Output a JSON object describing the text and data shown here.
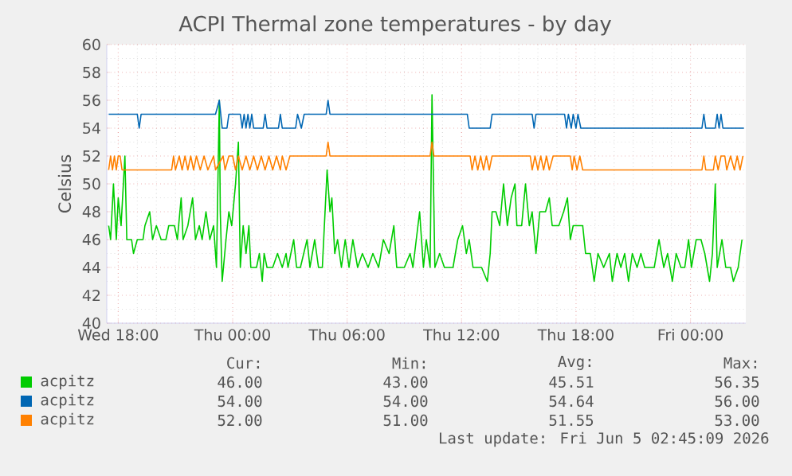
{
  "chart_data": {
    "type": "line",
    "title": "ACPI Thermal zone temperatures - by day",
    "ylabel": "Celsius",
    "xlim": [
      "2026-06-03T17:24",
      "2026-06-05T02:54"
    ],
    "xticks": [
      {
        "value": "2026-06-03T18:00",
        "label": "Wed 18:00"
      },
      {
        "value": "2026-06-04T00:00",
        "label": "Thu 00:00"
      },
      {
        "value": "2026-06-04T06:00",
        "label": "Thu 06:00"
      },
      {
        "value": "2026-06-04T12:00",
        "label": "Thu 12:00"
      },
      {
        "value": "2026-06-04T18:00",
        "label": "Thu 18:00"
      },
      {
        "value": "2026-06-05T00:00",
        "label": "Fri 00:00"
      }
    ],
    "ylim": [
      40,
      60
    ],
    "yticks": [
      40,
      42,
      44,
      46,
      48,
      50,
      52,
      54,
      56,
      58,
      60
    ],
    "grid": true,
    "legend": "bottom",
    "series": [
      {
        "name": "acpitz",
        "color": "#00cc00",
        "x": [
          "2026-06-03T17:30",
          "2026-06-03T17:36",
          "2026-06-03T17:45",
          "2026-06-03T17:54",
          "2026-06-03T18:00",
          "2026-06-03T18:09",
          "2026-06-03T18:21",
          "2026-06-03T18:27",
          "2026-06-03T18:42",
          "2026-06-03T18:48",
          "2026-06-03T19:00",
          "2026-06-03T19:18",
          "2026-06-03T19:24",
          "2026-06-03T19:39",
          "2026-06-03T19:48",
          "2026-06-03T20:00",
          "2026-06-03T20:15",
          "2026-06-03T20:30",
          "2026-06-03T20:39",
          "2026-06-03T20:57",
          "2026-06-03T21:06",
          "2026-06-03T21:18",
          "2026-06-03T21:24",
          "2026-06-03T21:39",
          "2026-06-03T21:54",
          "2026-06-03T22:03",
          "2026-06-03T22:15",
          "2026-06-03T22:24",
          "2026-06-03T22:36",
          "2026-06-03T22:48",
          "2026-06-03T23:00",
          "2026-06-03T23:09",
          "2026-06-03T23:18",
          "2026-06-03T23:21",
          "2026-06-03T23:27",
          "2026-06-03T23:39",
          "2026-06-03T23:48",
          "2026-06-03T23:57",
          "2026-06-04T00:09",
          "2026-06-04T00:18",
          "2026-06-04T00:24",
          "2026-06-04T00:33",
          "2026-06-04T00:42",
          "2026-06-04T00:51",
          "2026-06-04T00:57",
          "2026-06-04T01:15",
          "2026-06-04T01:24",
          "2026-06-04T01:33",
          "2026-06-04T01:39",
          "2026-06-04T01:48",
          "2026-06-04T02:06",
          "2026-06-04T02:21",
          "2026-06-04T02:36",
          "2026-06-04T02:48",
          "2026-06-04T02:54",
          "2026-06-04T03:03",
          "2026-06-04T03:12",
          "2026-06-04T03:21",
          "2026-06-04T03:33",
          "2026-06-04T03:54",
          "2026-06-04T04:03",
          "2026-06-04T04:18",
          "2026-06-04T04:30",
          "2026-06-04T04:42",
          "2026-06-04T04:57",
          "2026-06-04T05:06",
          "2026-06-04T05:12",
          "2026-06-04T05:21",
          "2026-06-04T05:30",
          "2026-06-04T05:42",
          "2026-06-04T05:54",
          "2026-06-04T06:06",
          "2026-06-04T06:18",
          "2026-06-04T06:33",
          "2026-06-04T06:48",
          "2026-06-04T07:06",
          "2026-06-04T07:21",
          "2026-06-04T07:39",
          "2026-06-04T07:54",
          "2026-06-04T08:12",
          "2026-06-04T08:27",
          "2026-06-04T08:36",
          "2026-06-04T09:00",
          "2026-06-04T09:18",
          "2026-06-04T09:27",
          "2026-06-04T09:48",
          "2026-06-04T10:00",
          "2026-06-04T10:09",
          "2026-06-04T10:21",
          "2026-06-04T10:27",
          "2026-06-04T10:36",
          "2026-06-04T10:51",
          "2026-06-04T11:06",
          "2026-06-04T11:33",
          "2026-06-04T11:48",
          "2026-06-04T12:03",
          "2026-06-04T12:15",
          "2026-06-04T12:24",
          "2026-06-04T12:36",
          "2026-06-04T13:03",
          "2026-06-04T13:21",
          "2026-06-04T13:30",
          "2026-06-04T13:36",
          "2026-06-04T13:48",
          "2026-06-04T14:00",
          "2026-06-04T14:12",
          "2026-06-04T14:24",
          "2026-06-04T14:36",
          "2026-06-04T14:48",
          "2026-06-04T14:54",
          "2026-06-04T15:09",
          "2026-06-04T15:21",
          "2026-06-04T15:33",
          "2026-06-04T15:42",
          "2026-06-04T15:54",
          "2026-06-04T16:06",
          "2026-06-04T16:24",
          "2026-06-04T16:36",
          "2026-06-04T16:45",
          "2026-06-04T17:06",
          "2026-06-04T17:21",
          "2026-06-04T17:33",
          "2026-06-04T17:42",
          "2026-06-04T17:51",
          "2026-06-04T18:03",
          "2026-06-04T18:21",
          "2026-06-04T18:30",
          "2026-06-04T18:45",
          "2026-06-04T18:57",
          "2026-06-04T19:09",
          "2026-06-04T19:27",
          "2026-06-04T19:45",
          "2026-06-04T19:54",
          "2026-06-04T20:09",
          "2026-06-04T20:21",
          "2026-06-04T20:33",
          "2026-06-04T20:45",
          "2026-06-04T20:57",
          "2026-06-04T21:12",
          "2026-06-04T21:24",
          "2026-06-04T21:36",
          "2026-06-04T21:48",
          "2026-06-04T22:06",
          "2026-06-04T22:21",
          "2026-06-04T22:36",
          "2026-06-04T22:48",
          "2026-06-04T23:03",
          "2026-06-04T23:15",
          "2026-06-04T23:30",
          "2026-06-04T23:42",
          "2026-06-04T23:54",
          "2026-06-05T00:03",
          "2026-06-05T00:18",
          "2026-06-05T00:33",
          "2026-06-05T00:45",
          "2026-06-05T01:00",
          "2026-06-05T01:09",
          "2026-06-05T01:18",
          "2026-06-05T01:24",
          "2026-06-05T01:39",
          "2026-06-05T01:51",
          "2026-06-05T02:06",
          "2026-06-05T02:15",
          "2026-06-05T02:30",
          "2026-06-05T02:42"
        ],
        "values": [
          47,
          46,
          50,
          46,
          49,
          47,
          52,
          46,
          46,
          45,
          46,
          46,
          47,
          48,
          46,
          47,
          46,
          46,
          47,
          47,
          46,
          49,
          46,
          47,
          49,
          46,
          47,
          46,
          48,
          46,
          47,
          44,
          56,
          48,
          43,
          46,
          48,
          47,
          50,
          53,
          44,
          47,
          45,
          47,
          44,
          44,
          45,
          43,
          45,
          44,
          44,
          45,
          44,
          45,
          44,
          45,
          46,
          44,
          44,
          46,
          44,
          46,
          44,
          44,
          51,
          48,
          49,
          45,
          46,
          44,
          46,
          44,
          46,
          44,
          45,
          44,
          45,
          44,
          46,
          45,
          47,
          44,
          44,
          45,
          44,
          48,
          44,
          46,
          44,
          56.4,
          44,
          45,
          44,
          44,
          46,
          47,
          45,
          46,
          44,
          44,
          43,
          45,
          48,
          48,
          47,
          50,
          47,
          49,
          50,
          47,
          47,
          50,
          47,
          48,
          45,
          48,
          48,
          49,
          47,
          47,
          48,
          49,
          46,
          47,
          47,
          47,
          45,
          45,
          43,
          45,
          44,
          45,
          43,
          45,
          44,
          45,
          43,
          45,
          44,
          45,
          44,
          44,
          44,
          46,
          44,
          45,
          43,
          45,
          44,
          44,
          46,
          44,
          46,
          46,
          45,
          43,
          45,
          50,
          44,
          46,
          44,
          44,
          43,
          44,
          46
        ]
      },
      {
        "name": "acpitz",
        "color": "#0066b3",
        "x": [
          "2026-06-03T17:30",
          "2026-06-03T19:00",
          "2026-06-03T19:06",
          "2026-06-03T19:12",
          "2026-06-03T23:06",
          "2026-06-03T23:18",
          "2026-06-03T23:27",
          "2026-06-03T23:42",
          "2026-06-03T23:48",
          "2026-06-04T00:24",
          "2026-06-04T00:30",
          "2026-06-04T00:36",
          "2026-06-04T00:42",
          "2026-06-04T00:48",
          "2026-06-04T00:54",
          "2026-06-04T01:00",
          "2026-06-04T01:06",
          "2026-06-04T01:36",
          "2026-06-04T01:42",
          "2026-06-04T01:48",
          "2026-06-04T02:24",
          "2026-06-04T02:30",
          "2026-06-04T02:36",
          "2026-06-04T03:18",
          "2026-06-04T03:24",
          "2026-06-04T03:36",
          "2026-06-04T03:45",
          "2026-06-04T04:54",
          "2026-06-04T05:00",
          "2026-06-04T05:06",
          "2026-06-04T12:18",
          "2026-06-04T12:24",
          "2026-06-04T13:30",
          "2026-06-04T13:36",
          "2026-06-04T15:42",
          "2026-06-04T15:48",
          "2026-06-04T15:54",
          "2026-06-04T17:24",
          "2026-06-04T17:30",
          "2026-06-04T17:36",
          "2026-06-04T17:45",
          "2026-06-04T17:51",
          "2026-06-04T18:00",
          "2026-06-04T18:06",
          "2026-06-04T18:15",
          "2026-06-05T00:36",
          "2026-06-05T00:42",
          "2026-06-05T00:48",
          "2026-06-05T01:18",
          "2026-06-05T01:24",
          "2026-06-05T01:30",
          "2026-06-05T01:36",
          "2026-06-05T01:42",
          "2026-06-05T02:48"
        ],
        "values": [
          55,
          55,
          54,
          55,
          55,
          56,
          54,
          54,
          55,
          55,
          54,
          55,
          54,
          55,
          54,
          55,
          54,
          54,
          55,
          54,
          54,
          55,
          54,
          54,
          55,
          54,
          55,
          55,
          56,
          55,
          55,
          54,
          54,
          55,
          55,
          54,
          55,
          55,
          54,
          55,
          54,
          55,
          54,
          55,
          54,
          54,
          55,
          54,
          54,
          55,
          54,
          55,
          54,
          54
        ]
      },
      {
        "name": "acpitz",
        "color": "#ff8000",
        "x": [
          "2026-06-03T17:30",
          "2026-06-03T17:36",
          "2026-06-03T17:42",
          "2026-06-03T17:48",
          "2026-06-03T17:54",
          "2026-06-03T18:00",
          "2026-06-03T18:06",
          "2026-06-03T18:12",
          "2026-06-03T20:48",
          "2026-06-03T20:54",
          "2026-06-03T21:00",
          "2026-06-03T21:12",
          "2026-06-03T21:21",
          "2026-06-03T21:30",
          "2026-06-03T21:39",
          "2026-06-03T21:48",
          "2026-06-03T21:57",
          "2026-06-03T22:06",
          "2026-06-03T22:18",
          "2026-06-03T22:30",
          "2026-06-03T22:42",
          "2026-06-03T23:00",
          "2026-06-03T23:06",
          "2026-06-03T23:30",
          "2026-06-03T23:36",
          "2026-06-03T23:48",
          "2026-06-04T00:00",
          "2026-06-04T00:09",
          "2026-06-04T00:18",
          "2026-06-04T00:30",
          "2026-06-04T00:42",
          "2026-06-04T00:54",
          "2026-06-04T01:06",
          "2026-06-04T01:18",
          "2026-06-04T01:30",
          "2026-06-04T01:42",
          "2026-06-04T01:54",
          "2026-06-04T02:06",
          "2026-06-04T02:18",
          "2026-06-04T02:30",
          "2026-06-04T02:36",
          "2026-06-04T02:48",
          "2026-06-04T03:00",
          "2026-06-04T04:54",
          "2026-06-04T05:00",
          "2026-06-04T05:06",
          "2026-06-04T10:21",
          "2026-06-04T10:27",
          "2026-06-04T10:33",
          "2026-06-04T12:27",
          "2026-06-04T12:33",
          "2026-06-04T12:42",
          "2026-06-04T12:51",
          "2026-06-04T13:00",
          "2026-06-04T13:09",
          "2026-06-04T13:18",
          "2026-06-04T13:27",
          "2026-06-04T13:36",
          "2026-06-04T15:36",
          "2026-06-04T15:42",
          "2026-06-04T15:51",
          "2026-06-04T16:00",
          "2026-06-04T16:09",
          "2026-06-04T16:18",
          "2026-06-04T16:27",
          "2026-06-04T16:36",
          "2026-06-04T16:48",
          "2026-06-04T17:42",
          "2026-06-04T17:48",
          "2026-06-04T17:54",
          "2026-06-04T18:03",
          "2026-06-04T18:12",
          "2026-06-04T18:21",
          "2026-06-05T00:36",
          "2026-06-05T00:42",
          "2026-06-05T00:48",
          "2026-06-05T01:12",
          "2026-06-05T01:18",
          "2026-06-05T01:27",
          "2026-06-05T01:36",
          "2026-06-05T01:48",
          "2026-06-05T01:54",
          "2026-06-05T02:06",
          "2026-06-05T02:18",
          "2026-06-05T02:27",
          "2026-06-05T02:36",
          "2026-06-05T02:45"
        ],
        "values": [
          51,
          52,
          51,
          52,
          51,
          52,
          52,
          51,
          51,
          52,
          51,
          52,
          51,
          52,
          51,
          52,
          51,
          52,
          51,
          52,
          51,
          52,
          51,
          52,
          51,
          52,
          52,
          51,
          52,
          51,
          52,
          51,
          52,
          51,
          52,
          51,
          52,
          51,
          52,
          51,
          52,
          51,
          52,
          52,
          53,
          52,
          52,
          53,
          52,
          52,
          51,
          52,
          51,
          52,
          51,
          52,
          51,
          52,
          52,
          51,
          52,
          51,
          52,
          51,
          52,
          51,
          52,
          52,
          51,
          52,
          51,
          52,
          51,
          51,
          52,
          51,
          51,
          52,
          51,
          52,
          52,
          51,
          52,
          51,
          52,
          51,
          52
        ]
      }
    ],
    "annotations": [
      "Cur:",
      "Min:",
      "Avg:",
      "Max:",
      "46.00",
      "43.00",
      "45.51",
      "56.35",
      "54.00",
      "54.00",
      "54.64",
      "56.00",
      "52.00",
      "51.00",
      "51.55",
      "53.00",
      "Last update: Fri Jun  5 02:45:09 2026"
    ]
  }
}
